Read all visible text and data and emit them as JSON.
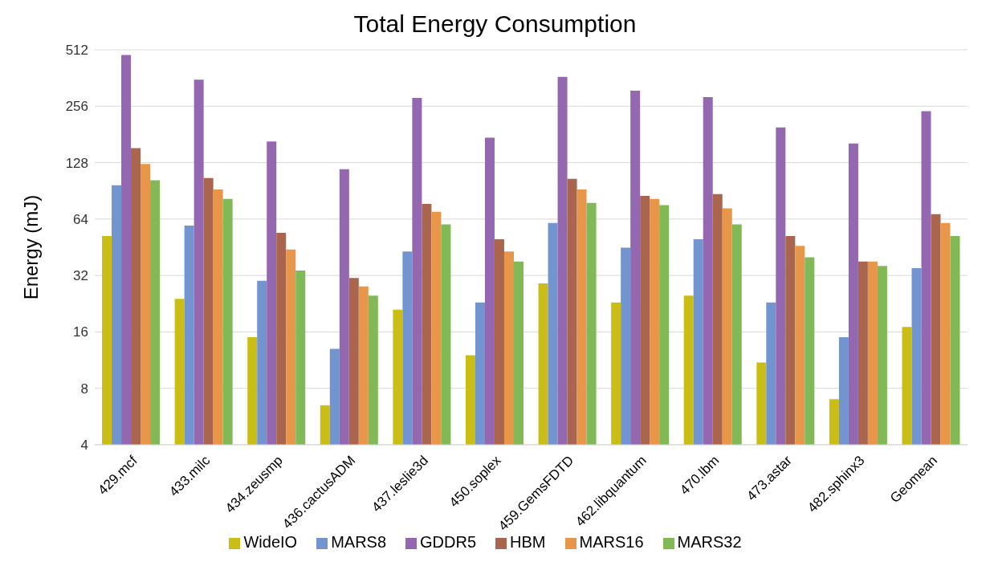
{
  "chart_data": {
    "type": "bar",
    "title": "Total Energy Consumption",
    "ylabel": "Energy (mJ)",
    "categories": [
      "429.mcf",
      "433.milc",
      "434.zeusmp",
      "436.cactusADM",
      "437.leslie3d",
      "450.soplex",
      "459.GemsFDTD",
      "462.libquantum",
      "470.lbm",
      "473.astar",
      "482.sphinx3",
      "Geomean"
    ],
    "series": [
      {
        "name": "WideIO",
        "color": "#c9bd16",
        "values": [
          52,
          24,
          15,
          6.5,
          21,
          12,
          29,
          23,
          25,
          11,
          7,
          17
        ]
      },
      {
        "name": "MARS8",
        "color": "#7295cf",
        "values": [
          97,
          59,
          30,
          13,
          43,
          23,
          61,
          45,
          50,
          23,
          15,
          35
        ]
      },
      {
        "name": "GDDR5",
        "color": "#9467b1",
        "values": [
          480,
          355,
          166,
          118,
          283,
          174,
          367,
          310,
          286,
          197,
          162,
          241
        ]
      },
      {
        "name": "HBM",
        "color": "#a9654e",
        "values": [
          153,
          106,
          54,
          31,
          77,
          50,
          105,
          85,
          87,
          52,
          38,
          68
        ]
      },
      {
        "name": "MARS16",
        "color": "#e8964a",
        "values": [
          126,
          92,
          44,
          28,
          70,
          43,
          92,
          82,
          73,
          46,
          38,
          61
        ]
      },
      {
        "name": "MARS32",
        "color": "#80b955",
        "values": [
          103,
          82,
          34,
          25,
          60,
          38,
          78,
          76,
          60,
          40,
          36,
          52
        ]
      }
    ],
    "log": "y",
    "ylim": [
      4,
      512
    ],
    "yticks": [
      4,
      8,
      16,
      32,
      64,
      128,
      256,
      512
    ],
    "grid": "y",
    "legend": "bottom"
  }
}
